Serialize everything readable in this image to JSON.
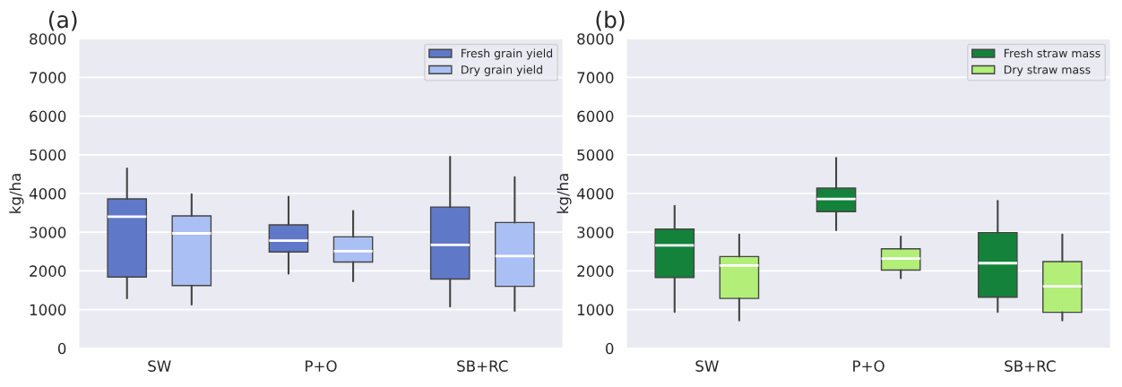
{
  "chart_data": [
    {
      "type": "box",
      "title": "(a)",
      "ylabel": "kg/ha",
      "categories": [
        "SW",
        "P+O",
        "SB+RC"
      ],
      "ylim": [
        0,
        8000
      ],
      "yticks": [
        0,
        1000,
        2000,
        3000,
        4000,
        5000,
        6000,
        7000,
        8000
      ],
      "grid": "y",
      "legend": "top right",
      "series": [
        {
          "name": "Fresh grain yield",
          "color": "#6078c8",
          "boxes": [
            {
              "low": 1290,
              "q1": 1840,
              "median": 3400,
              "q3": 3860,
              "high": 4650
            },
            {
              "low": 1930,
              "q1": 2490,
              "median": 2780,
              "q3": 3190,
              "high": 3920
            },
            {
              "low": 1080,
              "q1": 1790,
              "median": 2670,
              "q3": 3650,
              "high": 4950
            }
          ]
        },
        {
          "name": "Dry grain yield",
          "color": "#aac0f4",
          "boxes": [
            {
              "low": 1130,
              "q1": 1620,
              "median": 2970,
              "q3": 3420,
              "high": 3980
            },
            {
              "low": 1730,
              "q1": 2230,
              "median": 2510,
              "q3": 2880,
              "high": 3550
            },
            {
              "low": 970,
              "q1": 1600,
              "median": 2380,
              "q3": 3250,
              "high": 4420
            }
          ]
        }
      ]
    },
    {
      "type": "box",
      "title": "(b)",
      "ylabel": "kg/ha",
      "categories": [
        "SW",
        "P+O",
        "SB+RC"
      ],
      "ylim": [
        0,
        8000
      ],
      "yticks": [
        0,
        1000,
        2000,
        3000,
        4000,
        5000,
        6000,
        7000,
        8000
      ],
      "grid": "y",
      "legend": "top right",
      "series": [
        {
          "name": "Fresh straw mass",
          "color": "#14823a",
          "boxes": [
            {
              "low": 940,
              "q1": 1830,
              "median": 2660,
              "q3": 3080,
              "high": 3680
            },
            {
              "low": 3050,
              "q1": 3530,
              "median": 3860,
              "q3": 4140,
              "high": 4920
            },
            {
              "low": 940,
              "q1": 1320,
              "median": 2200,
              "q3": 2990,
              "high": 3810
            }
          ]
        },
        {
          "name": "Dry straw mass",
          "color": "#b2ee78",
          "boxes": [
            {
              "low": 720,
              "q1": 1290,
              "median": 2140,
              "q3": 2370,
              "high": 2940
            },
            {
              "low": 1810,
              "q1": 2020,
              "median": 2320,
              "q3": 2570,
              "high": 2890
            },
            {
              "low": 720,
              "q1": 930,
              "median": 1600,
              "q3": 2240,
              "high": 2940
            }
          ]
        }
      ]
    }
  ]
}
